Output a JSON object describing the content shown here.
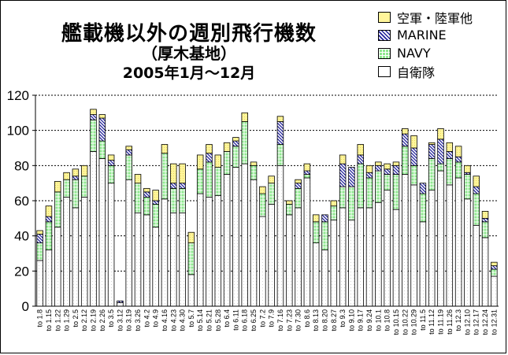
{
  "title": {
    "line1": "艦載機以外の週別飛行機数",
    "line2": "（厚木基地）",
    "line3": "2005年1月～12月"
  },
  "chart_data": {
    "type": "bar",
    "stacked": true,
    "ylim": [
      0,
      120
    ],
    "yticks": [
      0,
      20,
      40,
      60,
      80,
      100,
      120
    ],
    "legend_position": "top-right",
    "categories": [
      "to 1.8",
      "to 1.15",
      "to 1.22",
      "to 1.29",
      "to 2.5",
      "to 2.12",
      "to 2.19",
      "to 2.26",
      "to 3.5",
      "to 3.12",
      "to 3.19",
      "to 3.26",
      "to 4.2",
      "to 4.9",
      "to 4.16",
      "to 4.23",
      "to 4.30",
      "to 5.7",
      "to 5.14",
      "to 5.21",
      "to 5.28",
      "to 6.4",
      "to 6.11",
      "to 6.18",
      "to 6.25",
      "to 7.2",
      "to 7.9",
      "to 7.16",
      "to 7.23",
      "to 7.30",
      "to 8.6",
      "to 8.13",
      "to 8.20",
      "to 8.27",
      "to 9.3",
      "to 9.10",
      "to 9.17",
      "to 9.24",
      "to 10.1",
      "to 10.8",
      "to 10.15",
      "to 10.22",
      "to 10.29",
      "to 11.5",
      "to 11.12",
      "to 11.19",
      "to 11.26",
      "to 12.3",
      "to 12.10",
      "to 12.17",
      "to 12.24",
      "to 12.31"
    ],
    "series": [
      {
        "name": "自衛隊",
        "color": "#ffffff",
        "values": [
          26,
          32,
          45,
          62,
          56,
          62,
          88,
          84,
          70,
          2,
          72,
          53,
          52,
          45,
          61,
          53,
          53,
          18,
          64,
          62,
          63,
          75,
          79,
          81,
          72,
          51,
          58,
          80,
          52,
          56,
          73,
          36,
          32,
          49,
          56,
          49,
          56,
          56,
          59,
          66,
          55,
          75,
          69,
          48,
          66,
          77,
          69,
          73,
          61,
          46,
          39,
          17
        ]
      },
      {
        "name": "NAVY",
        "color": "#7fe27f",
        "values": [
          10,
          16,
          20,
          10,
          16,
          12,
          18,
          10,
          10,
          0,
          14,
          17,
          10,
          13,
          26,
          14,
          14,
          18,
          14,
          20,
          16,
          13,
          12,
          24,
          8,
          13,
          12,
          12,
          6,
          11,
          2,
          12,
          16,
          8,
          12,
          19,
          25,
          17,
          18,
          9,
          20,
          16,
          11,
          16,
          18,
          4,
          15,
          9,
          14,
          18,
          9,
          4
        ]
      },
      {
        "name": "MARINE",
        "color": "#3030b0",
        "values": [
          5,
          3,
          0,
          0,
          2,
          0,
          3,
          13,
          3,
          1,
          3,
          0,
          3,
          2,
          0,
          3,
          3,
          0,
          0,
          5,
          0,
          0,
          3,
          0,
          0,
          0,
          0,
          13,
          0,
          3,
          2,
          0,
          4,
          0,
          13,
          11,
          5,
          3,
          3,
          3,
          5,
          7,
          10,
          6,
          8,
          14,
          4,
          3,
          1,
          4,
          2,
          2
        ]
      },
      {
        "name": "空軍・陸軍他",
        "color": "#fff7a0",
        "values": [
          2,
          6,
          6,
          4,
          4,
          6,
          3,
          2,
          3,
          0,
          2,
          5,
          2,
          6,
          5,
          11,
          11,
          6,
          8,
          5,
          7,
          5,
          2,
          5,
          2,
          4,
          4,
          3,
          2,
          2,
          4,
          4,
          0,
          3,
          5,
          0,
          6,
          4,
          2,
          3,
          2,
          3,
          7,
          0,
          1,
          6,
          5,
          6,
          4,
          6,
          4,
          2
        ]
      }
    ]
  }
}
